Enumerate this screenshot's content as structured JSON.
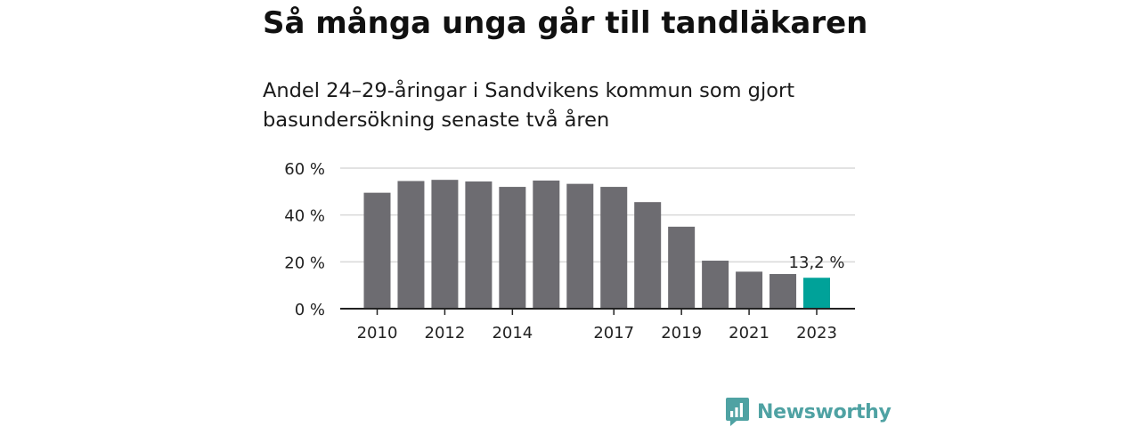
{
  "header": {
    "title": "Så många unga går till tandläkaren",
    "subtitle": "Andel 24–29-åringar i Sandvikens kommun som gjort basundersökning senaste två åren"
  },
  "chart_data": {
    "type": "bar",
    "categories": [
      "2010",
      "2011",
      "2012",
      "2013",
      "2014",
      "2015",
      "2016",
      "2017",
      "2018",
      "2019",
      "2020",
      "2021",
      "2022",
      "2023"
    ],
    "values": [
      49.5,
      54.5,
      55.0,
      54.3,
      52.0,
      54.7,
      53.3,
      52.0,
      45.5,
      35.0,
      20.5,
      15.8,
      14.8,
      13.2
    ],
    "xtick_labels": [
      "2010",
      "",
      "2012",
      "",
      "2014",
      "",
      "",
      "2017",
      "",
      "2019",
      "",
      "2021",
      "",
      "2023"
    ],
    "ytick_labels": [
      "0 %",
      "20 %",
      "40 %",
      "60 %"
    ],
    "yticks": [
      0,
      20,
      40,
      60
    ],
    "ylim": [
      0,
      60
    ],
    "grid": true,
    "highlight": {
      "index": 13,
      "label": "13,2 %"
    },
    "colors": {
      "bar": "#6d6c71",
      "highlight": "#00a299",
      "grid": "#d9d9d9",
      "axis": "#222222"
    }
  },
  "logo": {
    "name": "Newsworthy",
    "icon": "newsworthy-logo-icon",
    "color": "#4fa2a3"
  }
}
